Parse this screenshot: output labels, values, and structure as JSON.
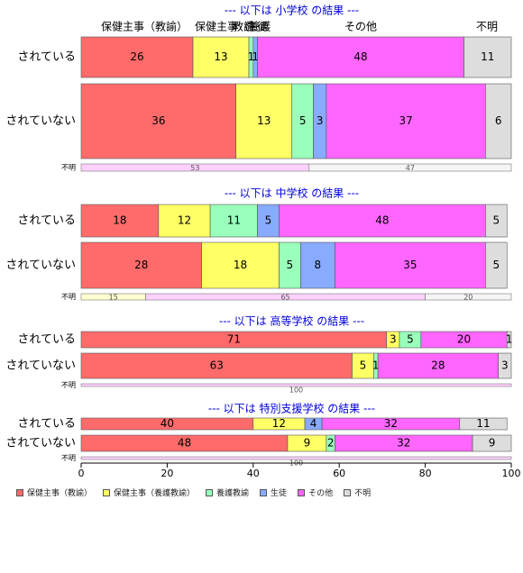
{
  "chart_data": {
    "type": "bar",
    "orientation": "horizontal",
    "stacked": true,
    "xlim": [
      0,
      100
    ],
    "xticks": [
      0,
      20,
      40,
      60,
      80,
      100
    ],
    "category_labels": [
      "保健主事（教諭）",
      "保健主事（養護教諭）",
      "養護教諭",
      "生徒",
      "その他",
      "不明"
    ],
    "colors": [
      "#ff6b6b",
      "#ffff66",
      "#99ffbb",
      "#88aaff",
      "#ff66ff",
      "#dddddd"
    ],
    "top_header_labels": [
      "保健主事（教諭）",
      "保健主事（養護",
      "教諭",
      "生徒",
      "その他",
      "不明"
    ],
    "panels": [
      {
        "title": "--- 以下は 小学校 の結果 ---",
        "rows": [
          {
            "label": "されている",
            "values": [
              26,
              13,
              1,
              1,
              48,
              11
            ]
          },
          {
            "label": "されていない",
            "values": [
              36,
              13,
              5,
              3,
              37,
              6
            ]
          }
        ],
        "unknown": {
          "label": "不明",
          "values": [
            0,
            0,
            0,
            0,
            53,
            47
          ]
        }
      },
      {
        "title": "--- 以下は 中学校 の結果 ---",
        "rows": [
          {
            "label": "されている",
            "values": [
              18,
              12,
              11,
              5,
              48,
              5
            ]
          },
          {
            "label": "されていない",
            "values": [
              28,
              18,
              5,
              8,
              35,
              5
            ]
          }
        ],
        "unknown": {
          "label": "不明",
          "values": [
            0,
            15,
            0,
            0,
            65,
            20
          ]
        }
      },
      {
        "title": "--- 以下は 高等学校 の結果 ---",
        "rows": [
          {
            "label": "されている",
            "values": [
              71,
              3,
              5,
              0,
              20,
              1
            ]
          },
          {
            "label": "されていない",
            "values": [
              63,
              5,
              1,
              0,
              28,
              3
            ]
          }
        ],
        "unknown": {
          "label": "不明",
          "values": [
            0,
            0,
            0,
            0,
            100,
            0
          ]
        }
      },
      {
        "title": "--- 以下は 特別支援学校 の結果 ---",
        "rows": [
          {
            "label": "されている",
            "values": [
              40,
              12,
              0,
              4,
              32,
              11
            ]
          },
          {
            "label": "されていない",
            "values": [
              48,
              9,
              2,
              0,
              32,
              9
            ]
          }
        ],
        "unknown": {
          "label": "不明",
          "values": [
            0,
            0,
            0,
            0,
            100,
            0
          ]
        }
      }
    ]
  }
}
